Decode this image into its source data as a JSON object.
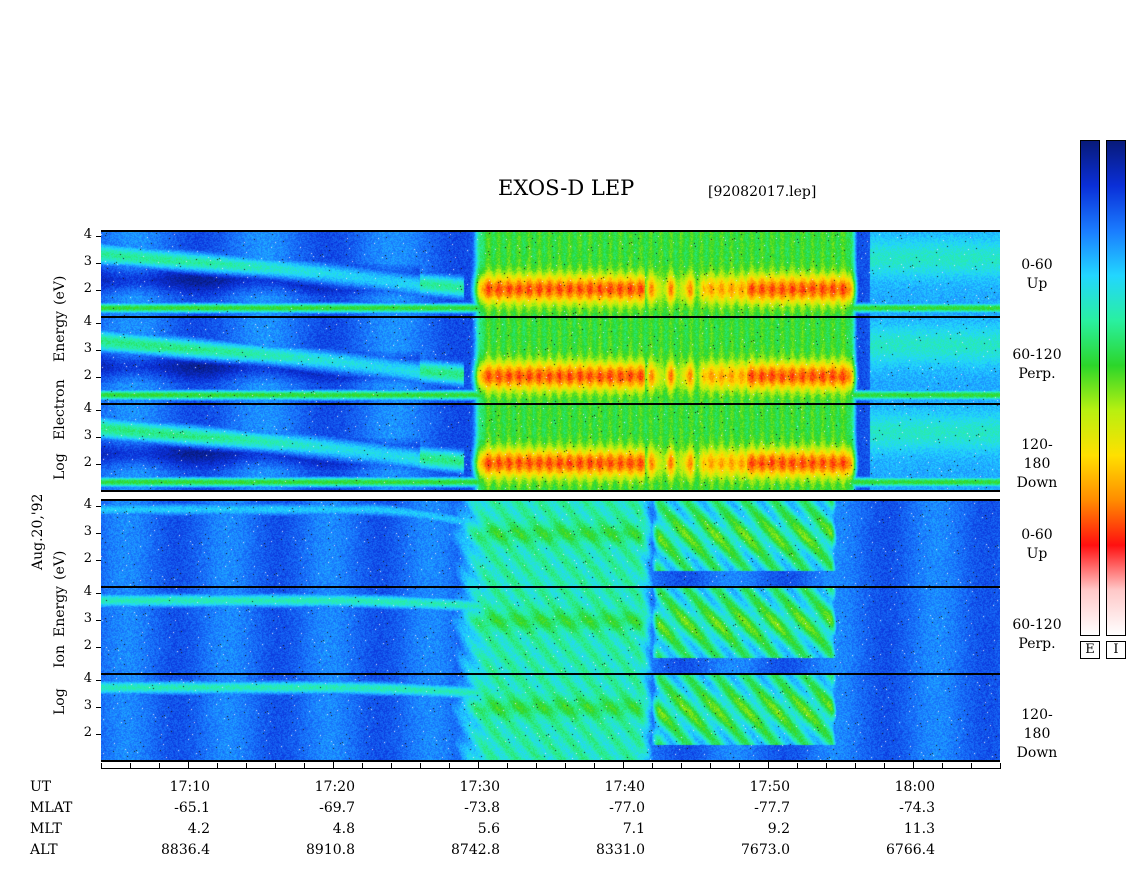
{
  "chart_data": {
    "type": "heatmap",
    "title": "EXOS-D LEP",
    "file_label": "[92082017.lep]",
    "date_label": "Aug.20,'92",
    "y_ticks": [
      "4",
      "3",
      "2"
    ],
    "y_range_log_ev": [
      1,
      4.2
    ],
    "time_range": [
      "17:04",
      "18:06"
    ],
    "electron_group": {
      "vertical_label_parts": [
        "Log",
        "Electron",
        "Energy",
        "(eV)"
      ],
      "panels": [
        {
          "pitch": "0-60",
          "direction": "Up"
        },
        {
          "pitch": "60-120",
          "direction": "Perp."
        },
        {
          "pitch": "120-180",
          "direction": "Down"
        }
      ]
    },
    "ion_group": {
      "vertical_label_parts": [
        "Log",
        "Ion",
        "Energy",
        "(eV)"
      ],
      "panels": [
        {
          "pitch": "0-60",
          "direction": "Up"
        },
        {
          "pitch": "60-120",
          "direction": "Perp."
        },
        {
          "pitch": "120-180",
          "direction": "Down"
        }
      ]
    },
    "x_axis": {
      "row_labels": [
        "UT",
        "MLAT",
        "MLT",
        "ALT"
      ],
      "columns": [
        {
          "UT": "17:10",
          "MLAT": "-65.1",
          "MLT": "4.2",
          "ALT": "8836.4"
        },
        {
          "UT": "17:20",
          "MLAT": "-69.7",
          "MLT": "4.8",
          "ALT": "8910.8"
        },
        {
          "UT": "17:30",
          "MLAT": "-73.8",
          "MLT": "5.6",
          "ALT": "8742.8"
        },
        {
          "UT": "17:40",
          "MLAT": "-77.0",
          "MLT": "7.1",
          "ALT": "8331.0"
        },
        {
          "UT": "17:50",
          "MLAT": "-77.7",
          "MLT": "9.2",
          "ALT": "7673.0"
        },
        {
          "UT": "18:00",
          "MLAT": "-74.3",
          "MLT": "11.3",
          "ALT": "6766.4"
        }
      ]
    },
    "colorbar": {
      "labels": [
        "E",
        "I"
      ],
      "colors": [
        "#081a7a",
        "#0a2fd8",
        "#1a7cff",
        "#22d6ff",
        "#29f0a0",
        "#2cd62a",
        "#b8f010",
        "#ffe000",
        "#ff8c00",
        "#ff1010",
        "#ffc8c8",
        "#ffffff"
      ]
    }
  }
}
